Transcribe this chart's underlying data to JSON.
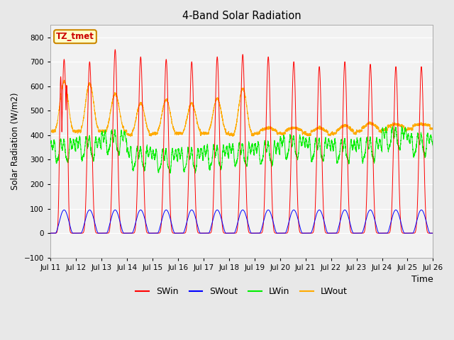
{
  "title": "4-Band Solar Radiation",
  "xlabel": "Time",
  "ylabel": "Solar Radiation (W/m2)",
  "ylim": [
    -100,
    850
  ],
  "yticks": [
    -100,
    0,
    100,
    200,
    300,
    400,
    500,
    600,
    700,
    800
  ],
  "num_days": 15,
  "fig_facecolor": "#e8e8e8",
  "ax_facecolor": "#f2f2f2",
  "colors": {
    "SWin": "#ff0000",
    "SWout": "#0000ff",
    "LWin": "#00ee00",
    "LWout": "#ffaa00"
  },
  "grid_color": "#ffffff",
  "label_box_facecolor": "#ffffcc",
  "label_box_edgecolor": "#cc8800",
  "label_text": "TZ_tmet",
  "label_text_color": "#cc0000",
  "tick_labels": [
    "Jul 11",
    "Jul 12",
    "Jul 13",
    "Jul 14",
    "Jul 15",
    "Jul 16",
    "Jul 17",
    "Jul 18",
    "Jul 19",
    "Jul 20",
    "Jul 21",
    "Jul 22",
    "Jul 23",
    "Jul 24",
    "Jul 25",
    "Jul 26"
  ],
  "sw_peaks": [
    710,
    700,
    750,
    720,
    710,
    700,
    720,
    730,
    720,
    700,
    680,
    700,
    690,
    680,
    680
  ],
  "lw_out_night": [
    430,
    430,
    430,
    415,
    420,
    420,
    420,
    415,
    420,
    420,
    415,
    420,
    430,
    435,
    440
  ],
  "lw_out_day_peak": [
    620,
    610,
    570,
    530,
    545,
    530,
    550,
    590,
    430,
    430,
    430,
    440,
    450,
    445,
    445
  ],
  "lw_in_base": [
    340,
    350,
    375,
    310,
    300,
    305,
    315,
    325,
    330,
    355,
    345,
    340,
    345,
    390,
    365
  ]
}
